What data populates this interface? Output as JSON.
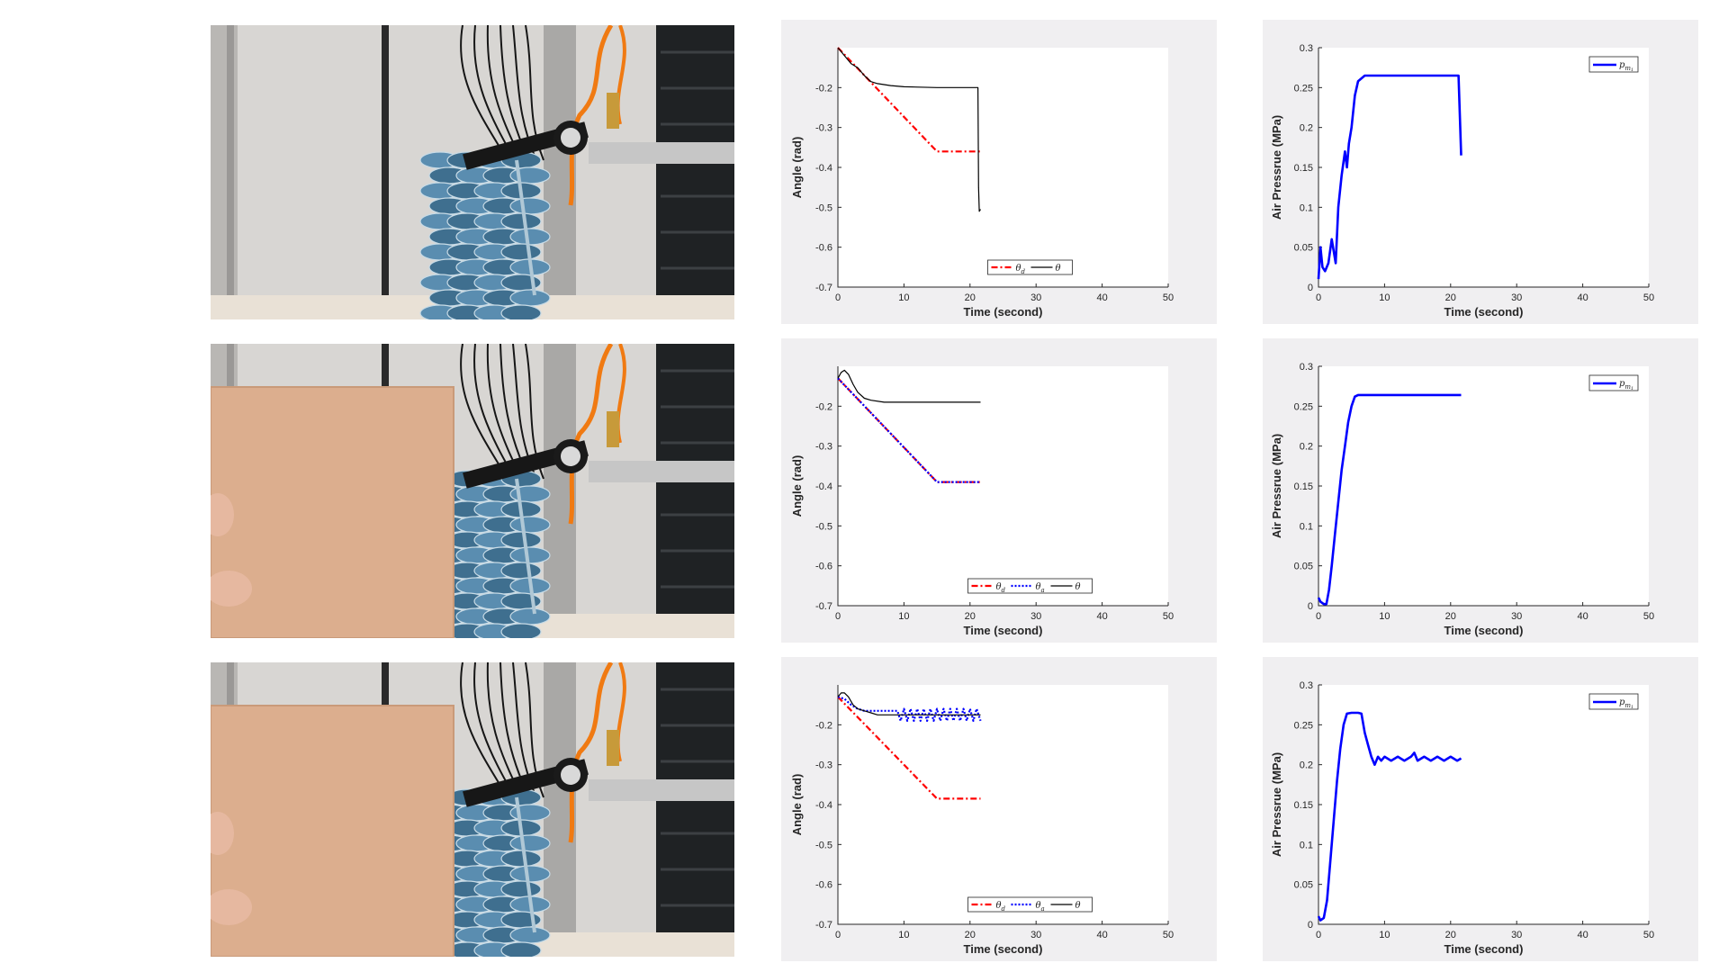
{
  "chart_data": [
    {
      "id": "angle-1",
      "type": "line",
      "xlabel": "Time (second)",
      "ylabel": "Angle (rad)",
      "xlim": [
        0,
        50
      ],
      "ylim": [
        -0.7,
        -0.1
      ],
      "xticks": [
        0,
        10,
        20,
        30,
        40,
        50
      ],
      "yticks": [
        -0.7,
        -0.6,
        -0.5,
        -0.4,
        -0.3,
        -0.2
      ],
      "grid": false,
      "legend_position": "bottom",
      "series": [
        {
          "name": "θd",
          "color": "#ff0000",
          "style": "dashdot",
          "x": [
            0,
            15,
            21.6
          ],
          "y": [
            -0.1,
            -0.36,
            -0.36
          ]
        },
        {
          "name": "θ",
          "color": "#000000",
          "style": "solid",
          "x": [
            0,
            0.5,
            1,
            2,
            3,
            4,
            5,
            6,
            8,
            10,
            15,
            20,
            21.2,
            21.3,
            21.4,
            21.6
          ],
          "y": [
            -0.1,
            -0.11,
            -0.12,
            -0.14,
            -0.15,
            -0.17,
            -0.185,
            -0.19,
            -0.195,
            -0.198,
            -0.2,
            -0.2,
            -0.2,
            -0.45,
            -0.51,
            -0.505
          ]
        }
      ]
    },
    {
      "id": "pressure-1",
      "type": "line",
      "xlabel": "Time (second)",
      "ylabel": "Air Pressrue (MPa)",
      "xlim": [
        0,
        50
      ],
      "ylim": [
        0,
        0.3
      ],
      "xticks": [
        0,
        10,
        20,
        30,
        40,
        50
      ],
      "yticks": [
        0,
        0.05,
        0.1,
        0.15,
        0.2,
        0.25,
        0.3
      ],
      "grid": false,
      "legend_position": "top-right",
      "series": [
        {
          "name": "p_m1",
          "color": "#0000ff",
          "style": "solid",
          "x": [
            0,
            0.3,
            0.6,
            1,
            1.5,
            2,
            2.3,
            2.6,
            3,
            3.5,
            4,
            4.3,
            4.6,
            5,
            5.5,
            6,
            7,
            10,
            15,
            20,
            21.2,
            21.6
          ],
          "y": [
            0.01,
            0.05,
            0.025,
            0.02,
            0.03,
            0.06,
            0.045,
            0.03,
            0.1,
            0.14,
            0.17,
            0.15,
            0.18,
            0.2,
            0.24,
            0.258,
            0.265,
            0.265,
            0.265,
            0.265,
            0.265,
            0.165
          ]
        }
      ]
    },
    {
      "id": "angle-2",
      "type": "line",
      "xlabel": "Time (second)",
      "ylabel": "Angle (rad)",
      "xlim": [
        0,
        50
      ],
      "ylim": [
        -0.7,
        -0.1
      ],
      "xticks": [
        0,
        10,
        20,
        30,
        40,
        50
      ],
      "yticks": [
        -0.7,
        -0.6,
        -0.5,
        -0.4,
        -0.3,
        -0.2
      ],
      "grid": false,
      "legend_position": "bottom",
      "series": [
        {
          "name": "θd",
          "color": "#ff0000",
          "style": "dashdot",
          "x": [
            0,
            15,
            21.6
          ],
          "y": [
            -0.13,
            -0.39,
            -0.39
          ]
        },
        {
          "name": "θa",
          "color": "#0000ff",
          "style": "dotted",
          "x": [
            0,
            15,
            21.6
          ],
          "y": [
            -0.13,
            -0.39,
            -0.39
          ]
        },
        {
          "name": "θ",
          "color": "#000000",
          "style": "solid",
          "x": [
            0,
            0.5,
            1,
            1.6,
            2.3,
            3,
            4,
            5,
            7,
            10,
            15,
            20,
            21.6
          ],
          "y": [
            -0.13,
            -0.115,
            -0.11,
            -0.12,
            -0.145,
            -0.165,
            -0.18,
            -0.185,
            -0.19,
            -0.19,
            -0.19,
            -0.19,
            -0.19
          ]
        }
      ]
    },
    {
      "id": "pressure-2",
      "type": "line",
      "xlabel": "Time (second)",
      "ylabel": "Air Pressrue (MPa)",
      "xlim": [
        0,
        50
      ],
      "ylim": [
        0,
        0.3
      ],
      "xticks": [
        0,
        10,
        20,
        30,
        40,
        50
      ],
      "yticks": [
        0,
        0.05,
        0.1,
        0.15,
        0.2,
        0.25,
        0.3
      ],
      "grid": false,
      "legend_position": "top-right",
      "series": [
        {
          "name": "p_m1",
          "color": "#0000ff",
          "style": "solid",
          "x": [
            0,
            0.3,
            0.8,
            1.2,
            1.6,
            2,
            2.5,
            3,
            3.5,
            4,
            4.5,
            5,
            5.5,
            6,
            8,
            10,
            15,
            20,
            21.6
          ],
          "y": [
            0.01,
            0.005,
            0.002,
            0.002,
            0.02,
            0.05,
            0.09,
            0.13,
            0.17,
            0.2,
            0.23,
            0.25,
            0.262,
            0.264,
            0.264,
            0.264,
            0.264,
            0.264,
            0.264
          ]
        }
      ]
    },
    {
      "id": "angle-3",
      "type": "line",
      "xlabel": "Time (second)",
      "ylabel": "Angle (rad)",
      "xlim": [
        0,
        50
      ],
      "ylim": [
        -0.7,
        -0.1
      ],
      "xticks": [
        0,
        10,
        20,
        30,
        40,
        50
      ],
      "yticks": [
        -0.7,
        -0.6,
        -0.5,
        -0.4,
        -0.3,
        -0.2
      ],
      "grid": false,
      "legend_position": "bottom",
      "series": [
        {
          "name": "θd",
          "color": "#ff0000",
          "style": "dashdot",
          "x": [
            0,
            15,
            21.6
          ],
          "y": [
            -0.13,
            -0.385,
            -0.385
          ]
        },
        {
          "name": "θa",
          "color": "#0000ff",
          "style": "dotted",
          "x": [
            0,
            1,
            2,
            3,
            4,
            6,
            9,
            9.5,
            10,
            10.5,
            11,
            11.5,
            12,
            12.5,
            13,
            13.5,
            14,
            14.5,
            15,
            15.5,
            16,
            16.5,
            17,
            17.5,
            18,
            18.5,
            19,
            19.5,
            20,
            20.5,
            21,
            21.6
          ],
          "y": [
            -0.13,
            -0.135,
            -0.15,
            -0.16,
            -0.165,
            -0.165,
            -0.165,
            -0.19,
            -0.16,
            -0.19,
            -0.16,
            -0.19,
            -0.16,
            -0.19,
            -0.16,
            -0.19,
            -0.16,
            -0.19,
            -0.16,
            -0.19,
            -0.16,
            -0.19,
            -0.16,
            -0.19,
            -0.16,
            -0.19,
            -0.16,
            -0.19,
            -0.16,
            -0.19,
            -0.16,
            -0.19
          ]
        },
        {
          "name": "θ",
          "color": "#000000",
          "style": "solid",
          "x": [
            0,
            0.5,
            1,
            1.6,
            2.3,
            3,
            4,
            5,
            6,
            8,
            10,
            15,
            20,
            21.6
          ],
          "y": [
            -0.13,
            -0.12,
            -0.12,
            -0.13,
            -0.15,
            -0.16,
            -0.165,
            -0.17,
            -0.175,
            -0.175,
            -0.175,
            -0.175,
            -0.175,
            -0.175
          ]
        }
      ]
    },
    {
      "id": "pressure-3",
      "type": "line",
      "xlabel": "Time (second)",
      "ylabel": "Air Pressrue (MPa)",
      "xlim": [
        0,
        50
      ],
      "ylim": [
        0,
        0.3
      ],
      "xticks": [
        0,
        10,
        20,
        30,
        40,
        50
      ],
      "yticks": [
        0,
        0.05,
        0.1,
        0.15,
        0.2,
        0.25,
        0.3
      ],
      "grid": false,
      "legend_position": "top-right",
      "series": [
        {
          "name": "p_m1",
          "color": "#0000ff",
          "style": "solid",
          "x": [
            0,
            0.3,
            0.8,
            1.3,
            1.8,
            2.3,
            2.8,
            3.3,
            3.8,
            4.3,
            5,
            6,
            6.5,
            7,
            7.5,
            8,
            8.5,
            9,
            9.5,
            10,
            11,
            12,
            13,
            14,
            14.5,
            15,
            16,
            17,
            18,
            19,
            20,
            21,
            21.6
          ],
          "y": [
            0.01,
            0.005,
            0.008,
            0.03,
            0.08,
            0.13,
            0.18,
            0.22,
            0.25,
            0.264,
            0.265,
            0.265,
            0.264,
            0.24,
            0.225,
            0.21,
            0.2,
            0.21,
            0.205,
            0.21,
            0.205,
            0.21,
            0.205,
            0.21,
            0.215,
            0.205,
            0.21,
            0.205,
            0.21,
            0.205,
            0.21,
            0.205,
            0.208
          ]
        }
      ]
    }
  ],
  "legend_labels": {
    "theta_d_sym": "θ",
    "theta_d_sub": "d",
    "theta_a_sym": "θ",
    "theta_a_sub": "a",
    "theta_sym": "θ",
    "p_sym": "p",
    "p_sub": "m",
    "p_subsub": "1"
  },
  "photos": [
    {
      "name": "Photo 1",
      "board": false
    },
    {
      "name": "Photo 2",
      "board": true
    },
    {
      "name": "Photo 3",
      "board": true
    }
  ]
}
